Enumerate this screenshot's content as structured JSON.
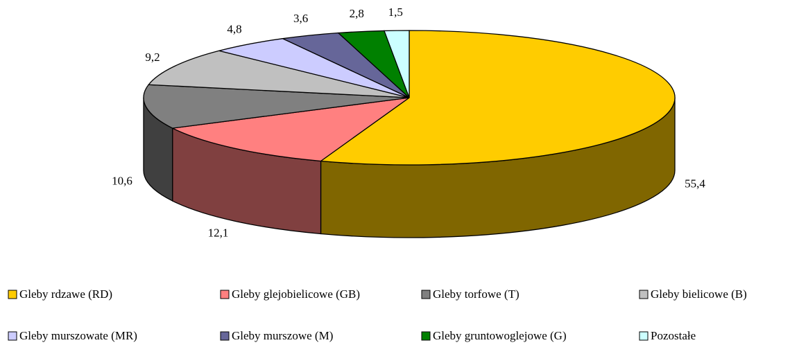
{
  "chart_data": {
    "type": "pie3d",
    "categories": [
      "Gleby rdzawe (RD)",
      "Gleby glejobielicowe (GB)",
      "Gleby torfowe (T)",
      "Gleby bielicowe (B)",
      "Gleby murszowate (MR)",
      "Gleby murszowe (M)",
      "Gleby gruntowoglejowe (G)",
      "Pozostałe"
    ],
    "values": [
      55.4,
      12.1,
      10.6,
      9.2,
      4.8,
      3.6,
      2.8,
      1.5
    ],
    "value_labels": [
      "55,4",
      "12,1",
      "10,6",
      "9,2",
      "4,8",
      "3,6",
      "2,8",
      "1,5"
    ],
    "colors": [
      "#FFCC00",
      "#FF8080",
      "#808080",
      "#C0C0C0",
      "#CCCCFF",
      "#666699",
      "#008000",
      "#CCFFFF"
    ],
    "legend": "bottom"
  }
}
